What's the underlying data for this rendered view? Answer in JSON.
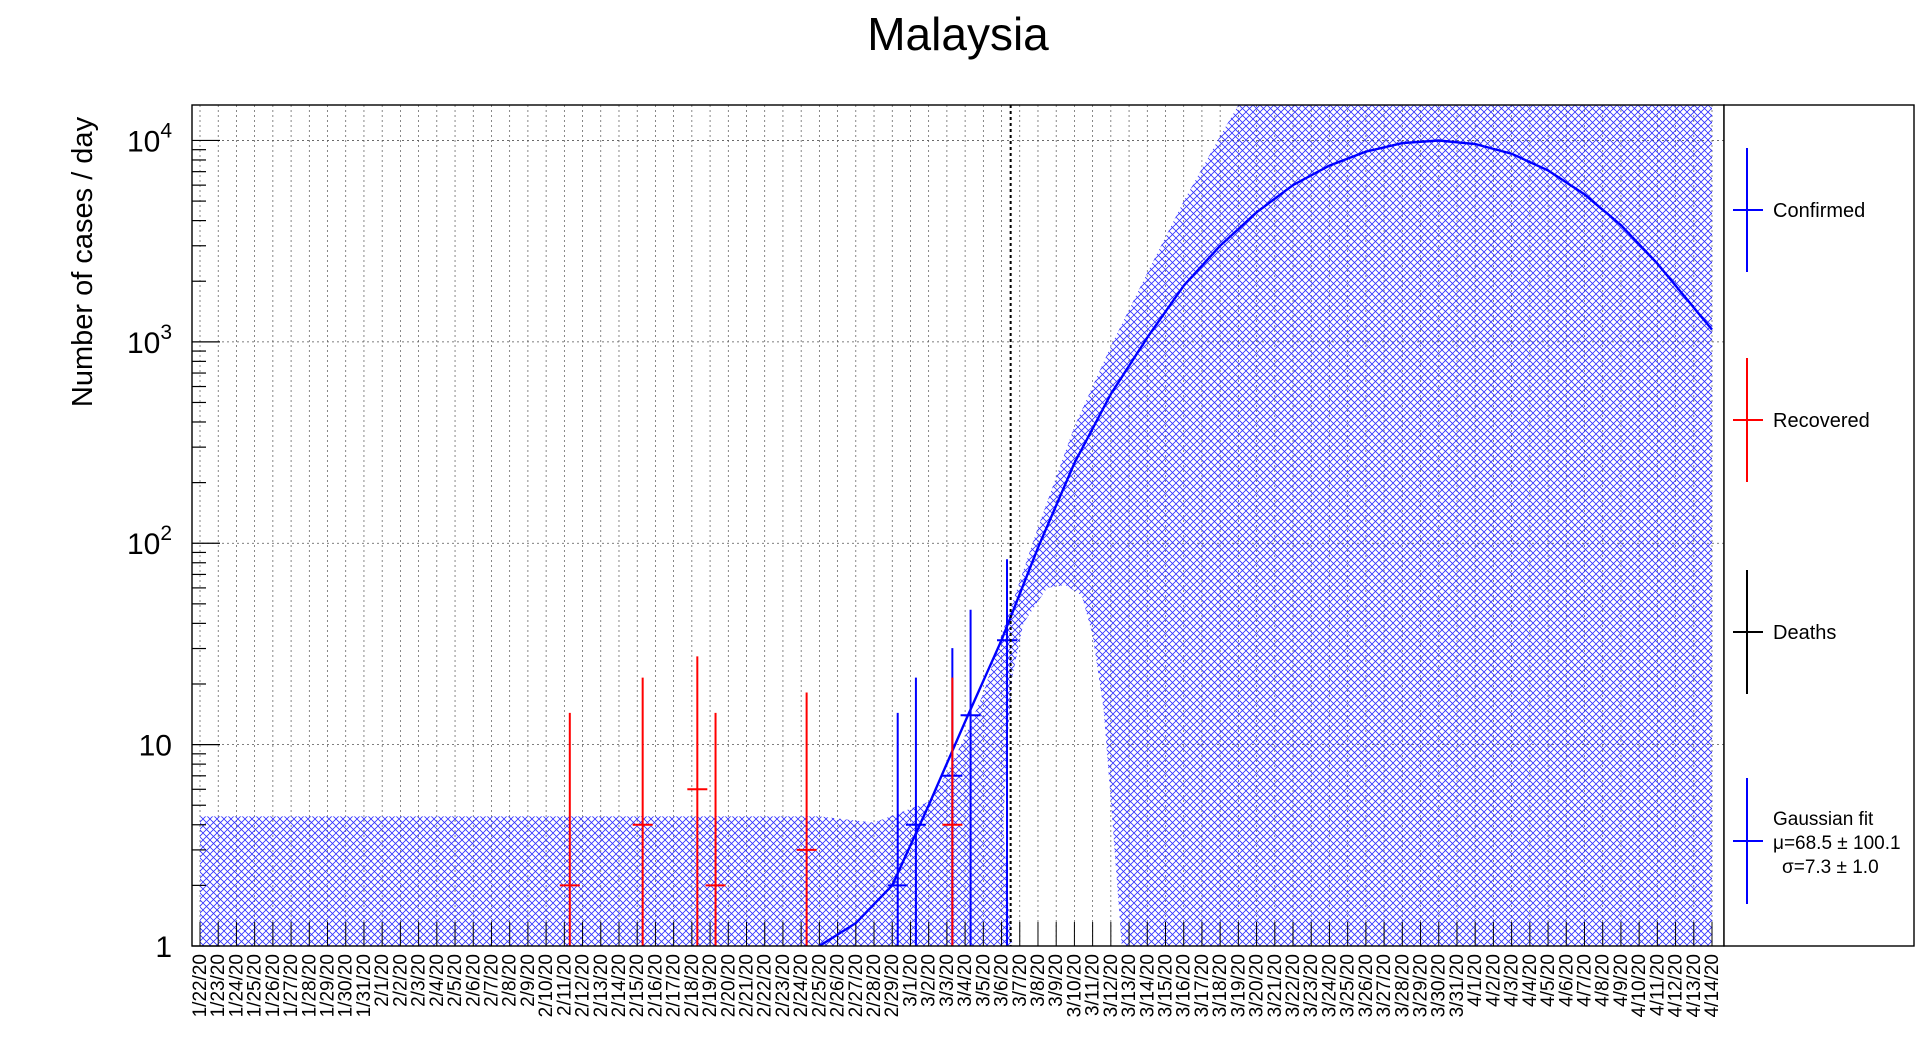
{
  "chart_data": {
    "type": "scatter",
    "title": "Malaysia",
    "ylabel": "Number of cases / day",
    "xlabel": "",
    "yscale": "log",
    "ylim": [
      1,
      15000
    ],
    "grid": true,
    "legend_position": "right",
    "categories": [
      "1/22/20",
      "1/23/20",
      "1/24/20",
      "1/25/20",
      "1/26/20",
      "1/27/20",
      "1/28/20",
      "1/29/20",
      "1/30/20",
      "1/31/20",
      "2/1/20",
      "2/2/20",
      "2/3/20",
      "2/4/20",
      "2/5/20",
      "2/6/20",
      "2/7/20",
      "2/8/20",
      "2/9/20",
      "2/10/20",
      "2/11/20",
      "2/12/20",
      "2/13/20",
      "2/14/20",
      "2/15/20",
      "2/16/20",
      "2/17/20",
      "2/18/20",
      "2/19/20",
      "2/20/20",
      "2/21/20",
      "2/22/20",
      "2/23/20",
      "2/24/20",
      "2/25/20",
      "2/26/20",
      "2/27/20",
      "2/28/20",
      "2/29/20",
      "3/1/20",
      "3/2/20",
      "3/3/20",
      "3/4/20",
      "3/5/20",
      "3/6/20",
      "3/7/20",
      "3/8/20",
      "3/9/20",
      "3/10/20",
      "3/11/20",
      "3/12/20",
      "3/13/20",
      "3/14/20",
      "3/15/20",
      "3/16/20",
      "3/17/20",
      "3/18/20",
      "3/19/20",
      "3/20/20",
      "3/21/20",
      "3/22/20",
      "3/23/20",
      "3/24/20",
      "3/25/20",
      "3/26/20",
      "3/27/20",
      "3/28/20",
      "3/29/20",
      "3/30/20",
      "3/31/20",
      "4/1/20",
      "4/2/20",
      "4/3/20",
      "4/4/20",
      "4/5/20",
      "4/6/20",
      "4/7/20",
      "4/8/20",
      "4/9/20",
      "4/10/20",
      "4/11/20",
      "4/12/20",
      "4/13/20",
      "4/14/20"
    ],
    "y_ticks": [
      {
        "value": 1,
        "label": "1"
      },
      {
        "value": 10,
        "label": "10"
      },
      {
        "value": 100,
        "base": "10",
        "exp": "2"
      },
      {
        "value": 1000,
        "base": "10",
        "exp": "3"
      },
      {
        "value": 10000,
        "base": "10",
        "exp": "4"
      }
    ],
    "series": [
      {
        "name": "Confirmed",
        "color": "#0000ff",
        "points": [
          {
            "x": "2/29/20",
            "y": 2
          },
          {
            "x": "3/1/20",
            "y": 4
          },
          {
            "x": "3/3/20",
            "y": 7
          },
          {
            "x": "3/4/20",
            "y": 14
          },
          {
            "x": "3/6/20",
            "y": 33
          }
        ]
      },
      {
        "name": "Recovered",
        "color": "#ff0000",
        "points": [
          {
            "x": "2/11/20",
            "y": 2
          },
          {
            "x": "2/15/20",
            "y": 4
          },
          {
            "x": "2/18/20",
            "y": 6
          },
          {
            "x": "2/19/20",
            "y": 2
          },
          {
            "x": "2/24/20",
            "y": 3
          },
          {
            "x": "3/3/20",
            "y": 4
          }
        ]
      },
      {
        "name": "Deaths",
        "color": "#000000",
        "points": []
      }
    ],
    "fit": {
      "name": "Gaussian fit",
      "color": "#0000ff",
      "legend_lines": [
        "Gaussian fit",
        "μ=68.5 ± 100.1",
        "σ=7.3 ± 1.0"
      ],
      "peak_x": "3/30/20",
      "peak_y": 10000,
      "curve": [
        {
          "x": "2/25/20",
          "y": 1
        },
        {
          "x": "2/27/20",
          "y": 1.3
        },
        {
          "x": "2/29/20",
          "y": 2
        },
        {
          "x": "3/2/20",
          "y": 5
        },
        {
          "x": "3/4/20",
          "y": 13
        },
        {
          "x": "3/6/20",
          "y": 33
        },
        {
          "x": "3/8/20",
          "y": 95
        },
        {
          "x": "3/10/20",
          "y": 250
        },
        {
          "x": "3/12/20",
          "y": 550
        },
        {
          "x": "3/14/20",
          "y": 1050
        },
        {
          "x": "3/16/20",
          "y": 1900
        },
        {
          "x": "3/18/20",
          "y": 3000
        },
        {
          "x": "3/20/20",
          "y": 4400
        },
        {
          "x": "3/22/20",
          "y": 6000
        },
        {
          "x": "3/24/20",
          "y": 7500
        },
        {
          "x": "3/26/20",
          "y": 8800
        },
        {
          "x": "3/28/20",
          "y": 9700
        },
        {
          "x": "3/30/20",
          "y": 10000
        },
        {
          "x": "4/1/20",
          "y": 9600
        },
        {
          "x": "4/3/20",
          "y": 8600
        },
        {
          "x": "4/5/20",
          "y": 7100
        },
        {
          "x": "4/7/20",
          "y": 5400
        },
        {
          "x": "4/9/20",
          "y": 3800
        },
        {
          "x": "4/11/20",
          "y": 2450
        },
        {
          "x": "4/14/20",
          "y": 1150
        }
      ]
    },
    "marker_line_x": "3/6/20"
  }
}
